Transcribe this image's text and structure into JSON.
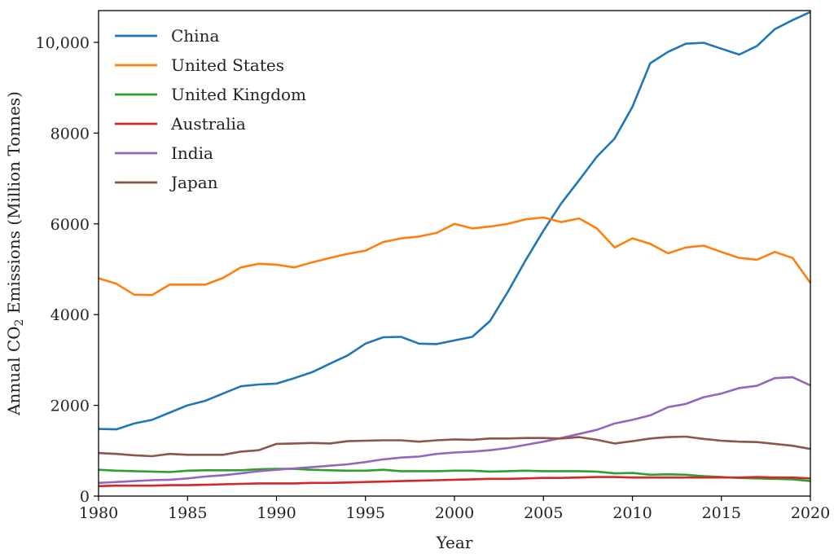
{
  "chart_data": {
    "type": "line",
    "title": "",
    "xlabel": "Year",
    "ylabel_prefix": "Annual CO",
    "ylabel_sub": "2",
    "ylabel_suffix": " Emissions (Million Tonnes)",
    "xlim": [
      1980,
      2020
    ],
    "ylim": [
      0,
      10700
    ],
    "xticks": [
      1980,
      1985,
      1990,
      1995,
      2000,
      2005,
      2010,
      2015,
      2020
    ],
    "xtick_labels": [
      "1980",
      "1985",
      "1990",
      "1995",
      "2000",
      "2005",
      "2010",
      "2015",
      "2020"
    ],
    "yticks": [
      0,
      2000,
      4000,
      6000,
      8000,
      10000
    ],
    "ytick_labels": [
      "0",
      "2000",
      "4000",
      "6000",
      "8000",
      "10,000"
    ],
    "grid": false,
    "legend_position": "top-left",
    "x": [
      1980,
      1981,
      1982,
      1983,
      1984,
      1985,
      1986,
      1987,
      1988,
      1989,
      1990,
      1991,
      1992,
      1993,
      1994,
      1995,
      1996,
      1997,
      1998,
      1999,
      2000,
      2001,
      2002,
      2003,
      2004,
      2005,
      2006,
      2007,
      2008,
      2009,
      2010,
      2011,
      2012,
      2013,
      2014,
      2015,
      2016,
      2017,
      2018,
      2019,
      2020
    ],
    "series": [
      {
        "name": "China",
        "color": "#1f77b4",
        "values": [
          1480,
          1470,
          1600,
          1680,
          1840,
          2000,
          2100,
          2260,
          2420,
          2460,
          2480,
          2600,
          2730,
          2920,
          3100,
          3360,
          3500,
          3510,
          3360,
          3350,
          3430,
          3510,
          3860,
          4500,
          5200,
          5850,
          6450,
          6960,
          7480,
          7880,
          8580,
          9540,
          9790,
          9970,
          9990,
          9860,
          9730,
          9920,
          10290,
          10490,
          10670
        ]
      },
      {
        "name": "United States",
        "color": "#ff7f0e",
        "values": [
          4800,
          4680,
          4440,
          4430,
          4660,
          4660,
          4660,
          4810,
          5040,
          5120,
          5100,
          5040,
          5150,
          5250,
          5340,
          5410,
          5600,
          5680,
          5720,
          5800,
          6000,
          5900,
          5940,
          6000,
          6100,
          6140,
          6040,
          6120,
          5900,
          5480,
          5680,
          5560,
          5350,
          5480,
          5520,
          5380,
          5250,
          5210,
          5380,
          5250,
          4700
        ]
      },
      {
        "name": "United Kingdom",
        "color": "#2ca02c",
        "values": [
          580,
          560,
          550,
          540,
          530,
          560,
          570,
          570,
          570,
          590,
          600,
          600,
          580,
          570,
          560,
          560,
          580,
          550,
          550,
          550,
          560,
          560,
          540,
          550,
          560,
          550,
          550,
          550,
          540,
          500,
          510,
          470,
          480,
          470,
          440,
          420,
          400,
          390,
          380,
          370,
          330
        ]
      },
      {
        "name": "Australia",
        "color": "#d62728",
        "values": [
          220,
          230,
          230,
          230,
          240,
          240,
          250,
          260,
          270,
          280,
          280,
          280,
          290,
          290,
          300,
          310,
          320,
          330,
          340,
          350,
          360,
          370,
          380,
          380,
          390,
          400,
          400,
          410,
          420,
          420,
          410,
          410,
          410,
          410,
          410,
          410,
          410,
          420,
          410,
          410,
          390
        ]
      },
      {
        "name": "India",
        "color": "#9467bd",
        "values": [
          290,
          310,
          330,
          350,
          360,
          390,
          430,
          460,
          500,
          550,
          580,
          610,
          640,
          670,
          700,
          750,
          810,
          850,
          870,
          930,
          960,
          980,
          1010,
          1060,
          1130,
          1200,
          1280,
          1370,
          1460,
          1600,
          1680,
          1780,
          1960,
          2030,
          2180,
          2260,
          2380,
          2430,
          2600,
          2620,
          2440
        ]
      },
      {
        "name": "Japan",
        "color": "#8c564b",
        "values": [
          950,
          930,
          900,
          880,
          930,
          910,
          910,
          910,
          980,
          1010,
          1150,
          1160,
          1170,
          1160,
          1210,
          1220,
          1230,
          1230,
          1200,
          1230,
          1250,
          1240,
          1270,
          1270,
          1280,
          1280,
          1270,
          1300,
          1240,
          1160,
          1210,
          1270,
          1300,
          1310,
          1260,
          1220,
          1200,
          1190,
          1150,
          1110,
          1040
        ]
      }
    ]
  }
}
